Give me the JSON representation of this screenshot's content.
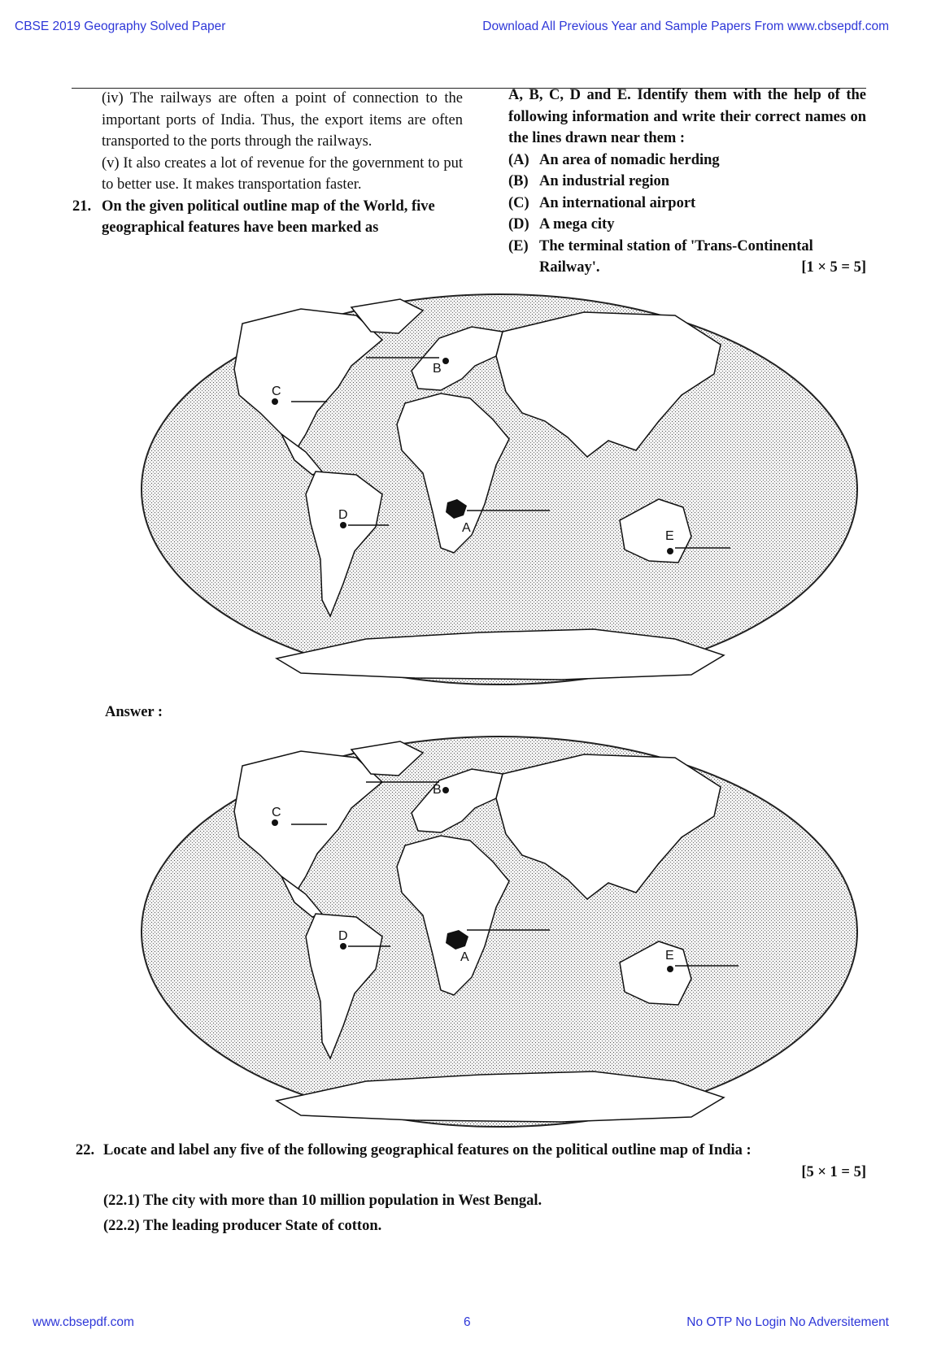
{
  "header": {
    "left": "CBSE 2019 Geography Solved Paper",
    "right": "Download All Previous Year and Sample Papers From www.cbsepdf.com"
  },
  "left_column": {
    "para_iv": "(iv) The railways are often a point of connection to the important ports of India. Thus, the export items are often transported to the ports through the railways.",
    "para_v": "(v) It also creates a lot of revenue for the government to put to better use. It makes transportation faster.",
    "q21_number": "21.",
    "q21_text": "On the given political outline map of the World, five geographical features have been marked as"
  },
  "right_column": {
    "intro": "A, B, C, D and E. Identify them with the help of the following information and write their correct names on the lines drawn near them :",
    "options": [
      {
        "key": "(A)",
        "text": "An area of nomadic herding"
      },
      {
        "key": "(B)",
        "text": "An industrial region"
      },
      {
        "key": "(C)",
        "text": "An international airport"
      },
      {
        "key": "(D)",
        "text": "A mega city"
      },
      {
        "key": "(E)",
        "text": "The terminal station of 'Trans-Continental"
      }
    ],
    "option_e_cont": "Railway'.",
    "marks": "[1 × 5 = 5]"
  },
  "map_labels": {
    "a": "A",
    "b": "B",
    "c": "C",
    "d": "D",
    "e": "E"
  },
  "answer_label": "Answer :",
  "q22": {
    "number": "22.",
    "text": "Locate and label any five of the following geographical features on the political outline map of India :",
    "marks": "[5 × 1 = 5]",
    "items": [
      "(22.1) The city with more than 10 million population in West Bengal.",
      "(22.2) The leading producer State of cotton."
    ]
  },
  "footer": {
    "left": "www.cbsepdf.com",
    "page": "6",
    "right": "No OTP No Login No Adversitement"
  },
  "colors": {
    "link": "#2e37d8",
    "text": "#111111"
  }
}
